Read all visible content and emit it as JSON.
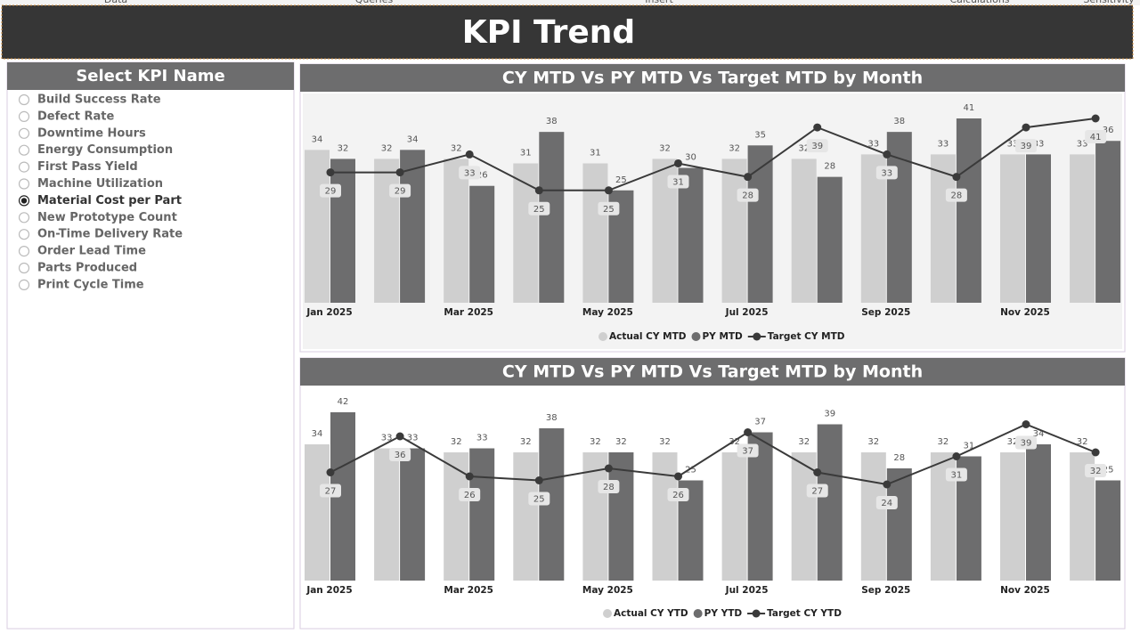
{
  "menu": [
    "Data",
    "Queries",
    "Insert",
    "Calculations",
    "Sensitivity"
  ],
  "header": {
    "title": "KPI Trend"
  },
  "slicer": {
    "title": "Select KPI Name",
    "options": [
      "Build Success Rate",
      "Defect Rate",
      "Downtime Hours",
      "Energy Consumption",
      "First Pass Yield",
      "Machine Utilization",
      "Material Cost per Part",
      "New Prototype Count",
      "On-Time Delivery Rate",
      "Order Lead Time",
      "Parts Produced",
      "Print Cycle Time"
    ],
    "selected": 6
  },
  "chart_data": [
    {
      "type": "bar-line",
      "title": "CY MTD Vs PY MTD Vs Target MTD by Month",
      "categories": [
        "Jan 2025",
        null,
        "Mar 2025",
        null,
        "May 2025",
        null,
        "Jul 2025",
        null,
        "Sep 2025",
        null,
        "Nov 2025",
        null
      ],
      "series": [
        {
          "name": "Actual CY MTD",
          "color": "#cfcfcf",
          "kind": "bar",
          "values": [
            34,
            32,
            32,
            31,
            31,
            32,
            32,
            32,
            33,
            33,
            33,
            33
          ]
        },
        {
          "name": "PY MTD",
          "color": "#6d6d6e",
          "kind": "bar",
          "values": [
            32,
            34,
            26,
            38,
            25,
            30,
            35,
            28,
            38,
            41,
            33,
            36
          ]
        },
        {
          "name": "Target CY MTD",
          "color": "#3a3a3a",
          "kind": "line",
          "values": [
            29,
            29,
            33,
            25,
            25,
            31,
            28,
            39,
            33,
            28,
            39,
            41
          ]
        }
      ]
    },
    {
      "type": "bar-line",
      "title": "CY MTD Vs PY MTD Vs Target MTD by Month",
      "categories": [
        "Jan 2025",
        null,
        "Mar 2025",
        null,
        "May 2025",
        null,
        "Jul 2025",
        null,
        "Sep 2025",
        null,
        "Nov 2025",
        null
      ],
      "series": [
        {
          "name": "Actual CY YTD",
          "color": "#cfcfcf",
          "kind": "bar",
          "values": [
            34,
            33,
            32,
            32,
            32,
            32,
            32,
            32,
            32,
            32,
            32,
            32
          ]
        },
        {
          "name": "PY YTD",
          "color": "#6d6d6e",
          "kind": "bar",
          "values": [
            42,
            33,
            33,
            38,
            32,
            25,
            37,
            39,
            28,
            31,
            34,
            25
          ]
        },
        {
          "name": "Target CY YTD",
          "color": "#3a3a3a",
          "kind": "line",
          "values": [
            27,
            36,
            26,
            25,
            28,
            26,
            37,
            27,
            24,
            31,
            39,
            32
          ]
        }
      ]
    }
  ]
}
